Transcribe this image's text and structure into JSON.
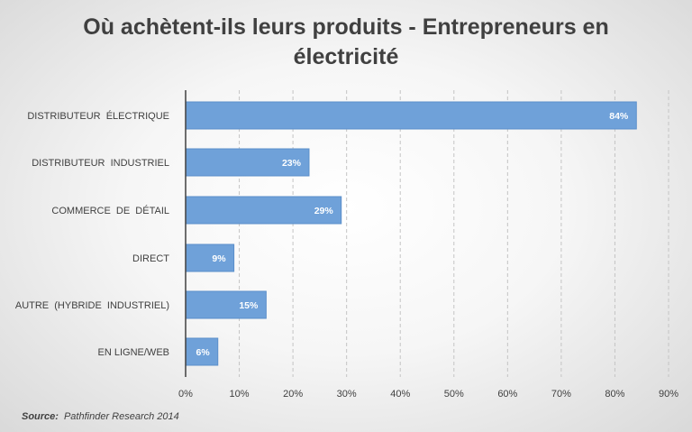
{
  "chart_data": {
    "type": "bar",
    "orientation": "horizontal",
    "title_line1": "Où achètent-ils leurs produits - Entrepreneurs en",
    "title_line2": "électricité",
    "categories": [
      "DISTRIBUTEUR  ÉLECTRIQUE",
      "DISTRIBUTEUR  INDUSTRIEL",
      "COMMERCE  DE  DÉTAIL",
      "DIRECT",
      "AUTRE  (HYBRIDE  INDUSTRIEL)",
      "EN LIGNE/WEB"
    ],
    "values": [
      84,
      23,
      29,
      9,
      15,
      6
    ],
    "value_labels": [
      "84%",
      "23%",
      "29%",
      "9%",
      "15%",
      "6%"
    ],
    "xlim": [
      0,
      90
    ],
    "xticks": [
      0,
      10,
      20,
      30,
      40,
      50,
      60,
      70,
      80,
      90
    ],
    "xtick_labels": [
      "0%",
      "10%",
      "20%",
      "30%",
      "40%",
      "50%",
      "60%",
      "70%",
      "80%",
      "90%"
    ],
    "xlabel": "",
    "ylabel": "",
    "grid": "vertical dashed",
    "bar_color": "#6fa1d9",
    "bar_border_color": "#5b8fca"
  },
  "source": {
    "label": "Source:",
    "text": "Pathfinder Research 2014"
  }
}
